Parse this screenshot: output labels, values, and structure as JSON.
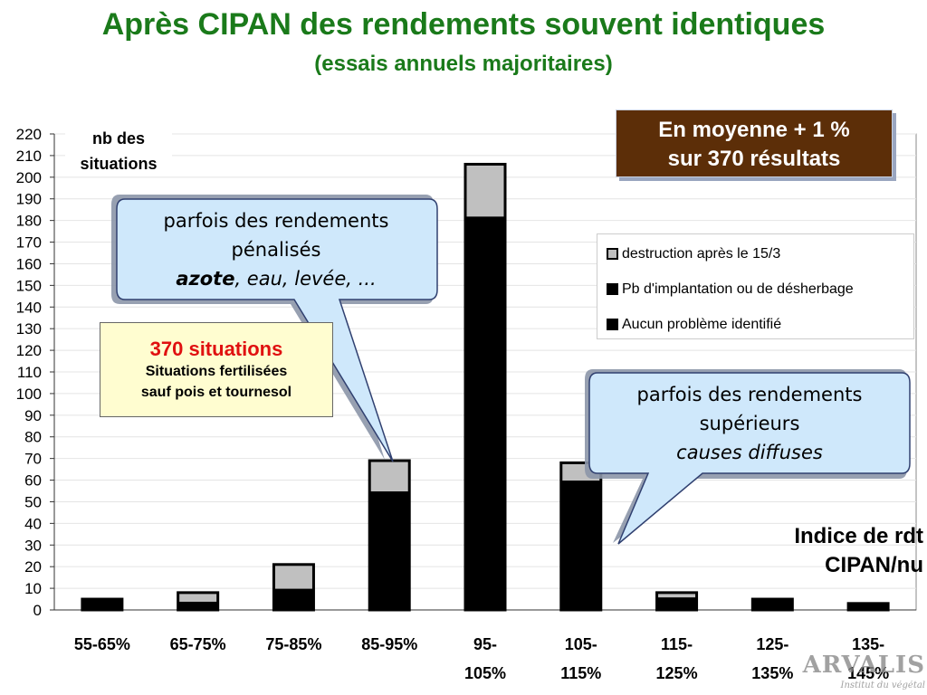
{
  "title": "Après CIPAN des rendements souvent identiques",
  "subtitle": "(essais annuels majoritaires)",
  "average_box": {
    "line1": "En moyenne + 1 %",
    "line2": "sur 370 résultats"
  },
  "info_box": {
    "count": "370 situations",
    "line1": "Situations fertilisées",
    "line2": "sauf pois et tournesol"
  },
  "callout_penalized": {
    "line1": "parfois des rendements",
    "line2": "pénalisés",
    "bold": "azote",
    "rest": ", eau, levée, ..."
  },
  "callout_superior": {
    "line1": "parfois des rendements",
    "line2": "supérieurs",
    "line3": "causes diffuses"
  },
  "x_axis_caption": {
    "line1": "Indice de rdt",
    "line2": "CIPAN/nu"
  },
  "logo": {
    "main": "ARVALIS",
    "sub": "Institut du végétal"
  },
  "colors": {
    "title": "#1a7a1a",
    "average_box": "#5c2e08",
    "info_count": "#e01010",
    "callout_fill": "#cfe8fb"
  },
  "chart_data": {
    "type": "bar",
    "stacked": true,
    "ylabel": "nb des situations",
    "ylim": [
      0,
      220
    ],
    "ytick_step": 10,
    "grid": true,
    "legend_position": "right",
    "category_lines": [
      [
        "55-65%"
      ],
      [
        "65-75%"
      ],
      [
        "75-85%"
      ],
      [
        "85-95%"
      ],
      [
        "95-",
        "105%"
      ],
      [
        "105-",
        "115%"
      ],
      [
        "115-",
        "125%"
      ],
      [
        "125-",
        "135%"
      ],
      [
        "135-",
        "145%"
      ]
    ],
    "series": [
      {
        "name": "Aucun problème identifié",
        "color": "#000000",
        "values": [
          5,
          4,
          6,
          45,
          172,
          55,
          6,
          5,
          3
        ]
      },
      {
        "name": "Pb d'implantation ou de désherbage",
        "color": "#000000",
        "values": [
          0,
          0,
          4,
          10,
          10,
          5,
          0,
          0,
          0
        ]
      },
      {
        "name": "destruction après le 15/3",
        "color": "#c0c0c0",
        "values": [
          0,
          4,
          11,
          14,
          24,
          8,
          2,
          0,
          0
        ]
      }
    ]
  }
}
